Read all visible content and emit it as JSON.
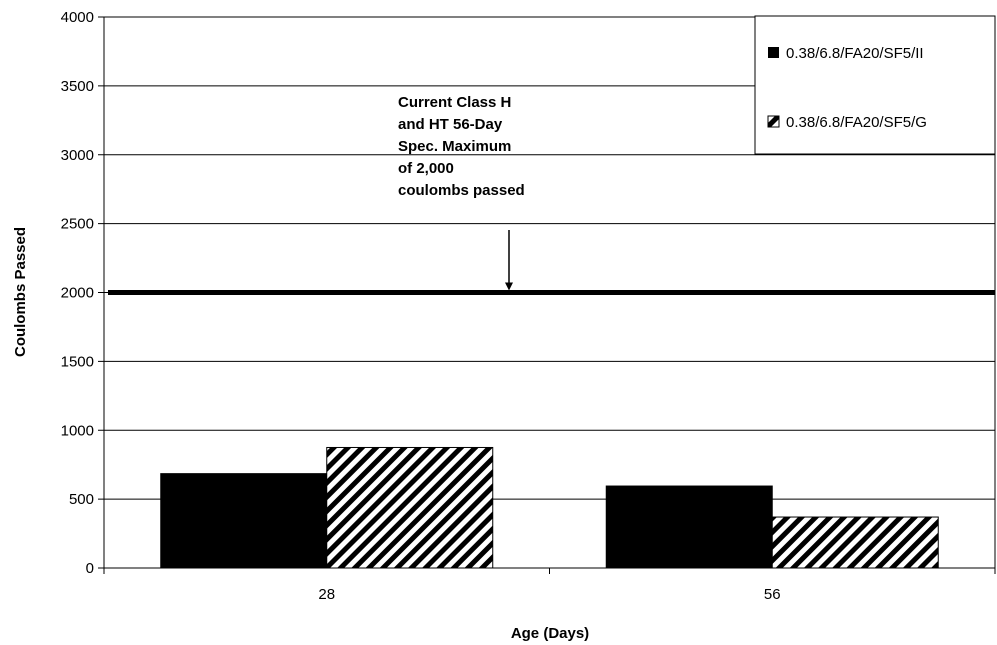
{
  "chart_data": {
    "type": "bar",
    "categories": [
      "28",
      "56"
    ],
    "series": [
      {
        "name": "0.38/6.8/FA20/SF5/II",
        "values": [
          685,
          595
        ],
        "fill": "solid",
        "color": "#000000"
      },
      {
        "name": "0.38/6.8/FA20/SF5/G",
        "values": [
          875,
          370
        ],
        "fill": "diagonal-hatch",
        "color": "#000000"
      }
    ],
    "title": "",
    "xlabel": "Age (Days)",
    "ylabel": "Coulombs Passed",
    "ylim": [
      0,
      4000
    ],
    "yticks": [
      0,
      500,
      1000,
      1500,
      2000,
      2500,
      3000,
      3500,
      4000
    ],
    "grid": true,
    "legend_position": "top-right",
    "reference_line": {
      "value": 2000
    },
    "annotation": {
      "lines": [
        "Current Class H",
        "and HT 56-Day",
        "Spec.  Maximum",
        "of 2,000",
        "coulombs passed"
      ],
      "points_to_value": 2000
    }
  }
}
